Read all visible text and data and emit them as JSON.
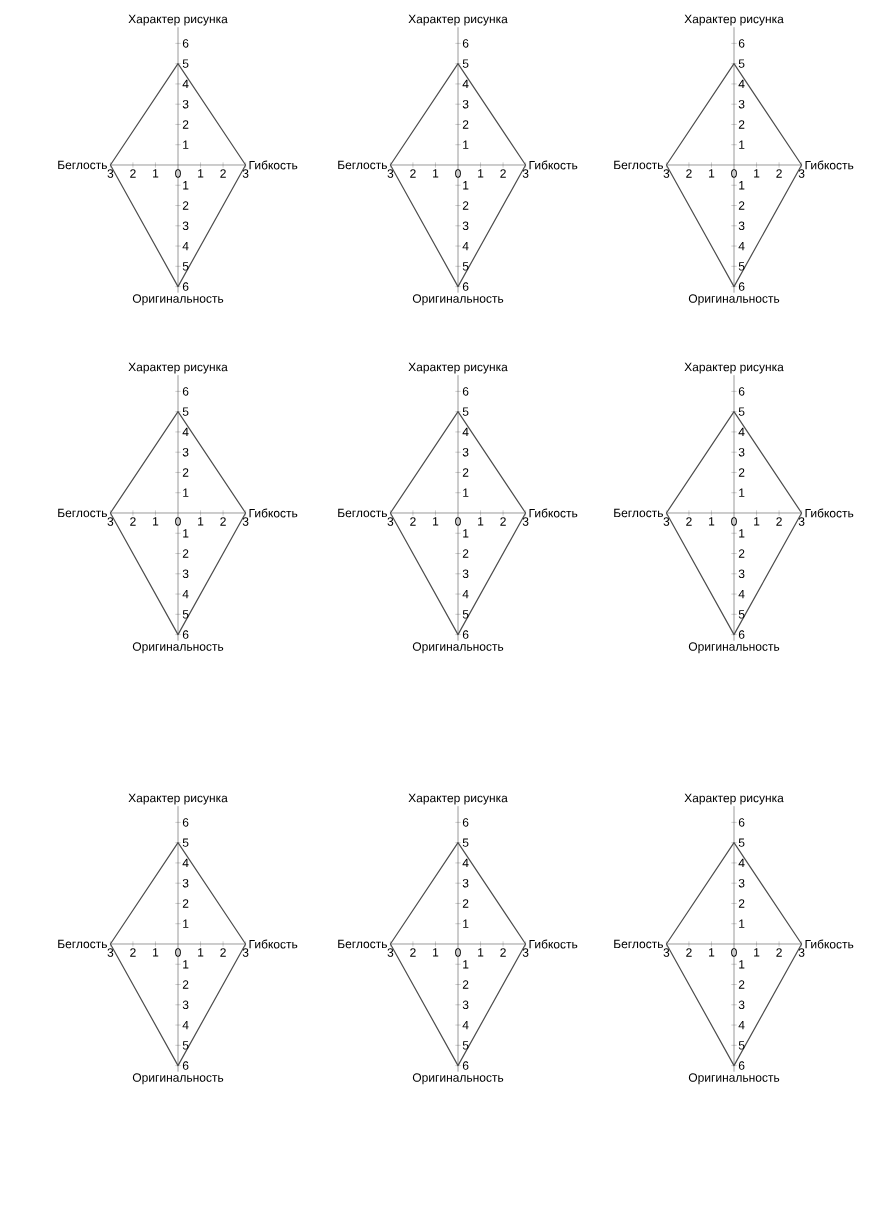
{
  "chart_data": [
    {
      "type": "line",
      "ylabel": "Характер рисунка",
      "xlabel": "Оригинальность",
      "annotations": [
        "Беглость",
        "Гибкость"
      ],
      "series": [
        {
          "color": "#4d4d4d",
          "x": [
            -3,
            0,
            3
          ],
          "values": [
            0,
            5,
            0
          ]
        },
        {
          "color": "#4d4d4d",
          "x": [
            -3,
            0,
            3
          ],
          "values": [
            0,
            -6,
            0
          ]
        }
      ],
      "xlim": [
        -3,
        3
      ],
      "ylim": [
        -6.3,
        6.8
      ],
      "xticks": [
        {
          "value": -3,
          "label": "3"
        },
        {
          "value": -2,
          "label": "2"
        },
        {
          "value": -1,
          "label": "1"
        },
        0,
        1,
        2,
        3
      ],
      "yticks": [
        {
          "value": -6,
          "label": "6"
        },
        {
          "value": -5,
          "label": "5"
        },
        {
          "value": -4,
          "label": "4"
        },
        {
          "value": -3,
          "label": "3"
        },
        {
          "value": -2,
          "label": "2"
        },
        {
          "value": -1,
          "label": "1"
        },
        1,
        2,
        3,
        4,
        5,
        6
      ]
    },
    {
      "type": "line",
      "ylabel": "Характер рисунка",
      "xlabel": "Оригинальность",
      "annotations": [
        "Беглость",
        "Гибкость"
      ],
      "series": [
        {
          "color": "#4d4d4d",
          "x": [
            -3,
            0,
            3
          ],
          "values": [
            0,
            5,
            0
          ]
        },
        {
          "color": "#4d4d4d",
          "x": [
            -3,
            0,
            3
          ],
          "values": [
            0,
            -6,
            0
          ]
        }
      ],
      "xlim": [
        -3,
        3
      ],
      "ylim": [
        -6.3,
        6.8
      ],
      "xticks": [
        {
          "value": -3,
          "label": "3"
        },
        {
          "value": -2,
          "label": "2"
        },
        {
          "value": -1,
          "label": "1"
        },
        0,
        1,
        2,
        3
      ],
      "yticks": [
        {
          "value": -6,
          "label": "6"
        },
        {
          "value": -5,
          "label": "5"
        },
        {
          "value": -4,
          "label": "4"
        },
        {
          "value": -3,
          "label": "3"
        },
        {
          "value": -2,
          "label": "2"
        },
        {
          "value": -1,
          "label": "1"
        },
        1,
        2,
        3,
        4,
        5,
        6
      ]
    },
    {
      "type": "line",
      "ylabel": "Характер рисунка",
      "xlabel": "Оригинальность",
      "annotations": [
        "Беглость",
        "Гибкость"
      ],
      "series": [
        {
          "color": "#4d4d4d",
          "x": [
            -3,
            0,
            3
          ],
          "values": [
            0,
            5,
            0
          ]
        },
        {
          "color": "#4d4d4d",
          "x": [
            -3,
            0,
            3
          ],
          "values": [
            0,
            -6,
            0
          ]
        }
      ],
      "xlim": [
        -3,
        3
      ],
      "ylim": [
        -6.3,
        6.8
      ],
      "xticks": [
        {
          "value": -3,
          "label": "3"
        },
        {
          "value": -2,
          "label": "2"
        },
        {
          "value": -1,
          "label": "1"
        },
        0,
        1,
        2,
        3
      ],
      "yticks": [
        {
          "value": -6,
          "label": "6"
        },
        {
          "value": -5,
          "label": "5"
        },
        {
          "value": -4,
          "label": "4"
        },
        {
          "value": -3,
          "label": "3"
        },
        {
          "value": -2,
          "label": "2"
        },
        {
          "value": -1,
          "label": "1"
        },
        1,
        2,
        3,
        4,
        5,
        6
      ]
    },
    {
      "type": "line",
      "ylabel": "Характер рисунка",
      "xlabel": "Оригинальность",
      "annotations": [
        "Беглость",
        "Гибкость"
      ],
      "series": [
        {
          "color": "#4d4d4d",
          "x": [
            -3,
            0,
            3
          ],
          "values": [
            0,
            5,
            0
          ]
        },
        {
          "color": "#4d4d4d",
          "x": [
            -3,
            0,
            3
          ],
          "values": [
            0,
            -6,
            0
          ]
        }
      ],
      "xlim": [
        -3,
        3
      ],
      "ylim": [
        -6.3,
        6.8
      ],
      "xticks": [
        {
          "value": -3,
          "label": "3"
        },
        {
          "value": -2,
          "label": "2"
        },
        {
          "value": -1,
          "label": "1"
        },
        0,
        1,
        2,
        3
      ],
      "yticks": [
        {
          "value": -6,
          "label": "6"
        },
        {
          "value": -5,
          "label": "5"
        },
        {
          "value": -4,
          "label": "4"
        },
        {
          "value": -3,
          "label": "3"
        },
        {
          "value": -2,
          "label": "2"
        },
        {
          "value": -1,
          "label": "1"
        },
        1,
        2,
        3,
        4,
        5,
        6
      ]
    },
    {
      "type": "line",
      "ylabel": "Характер рисунка",
      "xlabel": "Оригинальность",
      "annotations": [
        "Беглость",
        "Гибкость"
      ],
      "series": [
        {
          "color": "#4d4d4d",
          "x": [
            -3,
            0,
            3
          ],
          "values": [
            0,
            5,
            0
          ]
        },
        {
          "color": "#4d4d4d",
          "x": [
            -3,
            0,
            3
          ],
          "values": [
            0,
            -6,
            0
          ]
        }
      ],
      "xlim": [
        -3,
        3
      ],
      "ylim": [
        -6.3,
        6.8
      ],
      "xticks": [
        {
          "value": -3,
          "label": "3"
        },
        {
          "value": -2,
          "label": "2"
        },
        {
          "value": -1,
          "label": "1"
        },
        0,
        1,
        2,
        3
      ],
      "yticks": [
        {
          "value": -6,
          "label": "6"
        },
        {
          "value": -5,
          "label": "5"
        },
        {
          "value": -4,
          "label": "4"
        },
        {
          "value": -3,
          "label": "3"
        },
        {
          "value": -2,
          "label": "2"
        },
        {
          "value": -1,
          "label": "1"
        },
        1,
        2,
        3,
        4,
        5,
        6
      ]
    },
    {
      "type": "line",
      "ylabel": "Характер рисунка",
      "xlabel": "Оригинальность",
      "annotations": [
        "Беглость",
        "Гибкость"
      ],
      "series": [
        {
          "color": "#4d4d4d",
          "x": [
            -3,
            0,
            3
          ],
          "values": [
            0,
            5,
            0
          ]
        },
        {
          "color": "#4d4d4d",
          "x": [
            -3,
            0,
            3
          ],
          "values": [
            0,
            -6,
            0
          ]
        }
      ],
      "xlim": [
        -3,
        3
      ],
      "ylim": [
        -6.3,
        6.8
      ],
      "xticks": [
        {
          "value": -3,
          "label": "3"
        },
        {
          "value": -2,
          "label": "2"
        },
        {
          "value": -1,
          "label": "1"
        },
        0,
        1,
        2,
        3
      ],
      "yticks": [
        {
          "value": -6,
          "label": "6"
        },
        {
          "value": -5,
          "label": "5"
        },
        {
          "value": -4,
          "label": "4"
        },
        {
          "value": -3,
          "label": "3"
        },
        {
          "value": -2,
          "label": "2"
        },
        {
          "value": -1,
          "label": "1"
        },
        1,
        2,
        3,
        4,
        5,
        6
      ]
    },
    {
      "type": "line",
      "ylabel": "Характер рисунка",
      "xlabel": "Оригинальность",
      "annotations": [
        "Беглость",
        "Гибкость"
      ],
      "series": [
        {
          "color": "#4d4d4d",
          "x": [
            -3,
            0,
            3
          ],
          "values": [
            0,
            5,
            0
          ]
        },
        {
          "color": "#4d4d4d",
          "x": [
            -3,
            0,
            3
          ],
          "values": [
            0,
            -6,
            0
          ]
        }
      ],
      "xlim": [
        -3,
        3
      ],
      "ylim": [
        -6.3,
        6.8
      ],
      "xticks": [
        {
          "value": -3,
          "label": "3"
        },
        {
          "value": -2,
          "label": "2"
        },
        {
          "value": -1,
          "label": "1"
        },
        0,
        1,
        2,
        3
      ],
      "yticks": [
        {
          "value": -6,
          "label": "6"
        },
        {
          "value": -5,
          "label": "5"
        },
        {
          "value": -4,
          "label": "4"
        },
        {
          "value": -3,
          "label": "3"
        },
        {
          "value": -2,
          "label": "2"
        },
        {
          "value": -1,
          "label": "1"
        },
        1,
        2,
        3,
        4,
        5,
        6
      ]
    },
    {
      "type": "line",
      "ylabel": "Характер рисунка",
      "xlabel": "Оригинальность",
      "annotations": [
        "Беглость",
        "Гибкость"
      ],
      "series": [
        {
          "color": "#4d4d4d",
          "x": [
            -3,
            0,
            3
          ],
          "values": [
            0,
            5,
            0
          ]
        },
        {
          "color": "#4d4d4d",
          "x": [
            -3,
            0,
            3
          ],
          "values": [
            0,
            -6,
            0
          ]
        }
      ],
      "xlim": [
        -3,
        3
      ],
      "ylim": [
        -6.3,
        6.8
      ],
      "xticks": [
        {
          "value": -3,
          "label": "3"
        },
        {
          "value": -2,
          "label": "2"
        },
        {
          "value": -1,
          "label": "1"
        },
        0,
        1,
        2,
        3
      ],
      "yticks": [
        {
          "value": -6,
          "label": "6"
        },
        {
          "value": -5,
          "label": "5"
        },
        {
          "value": -4,
          "label": "4"
        },
        {
          "value": -3,
          "label": "3"
        },
        {
          "value": -2,
          "label": "2"
        },
        {
          "value": -1,
          "label": "1"
        },
        1,
        2,
        3,
        4,
        5,
        6
      ]
    },
    {
      "type": "line",
      "ylabel": "Характер рисунка",
      "xlabel": "Оригинальность",
      "annotations": [
        "Беглость",
        "Гибкость"
      ],
      "series": [
        {
          "color": "#4d4d4d",
          "x": [
            -3,
            0,
            3
          ],
          "values": [
            0,
            5,
            0
          ]
        },
        {
          "color": "#4d4d4d",
          "x": [
            -3,
            0,
            3
          ],
          "values": [
            0,
            -6,
            0
          ]
        }
      ],
      "xlim": [
        -3,
        3
      ],
      "ylim": [
        -6.3,
        6.8
      ],
      "xticks": [
        {
          "value": -3,
          "label": "3"
        },
        {
          "value": -2,
          "label": "2"
        },
        {
          "value": -1,
          "label": "1"
        },
        0,
        1,
        2,
        3
      ],
      "yticks": [
        {
          "value": -6,
          "label": "6"
        },
        {
          "value": -5,
          "label": "5"
        },
        {
          "value": -4,
          "label": "4"
        },
        {
          "value": -3,
          "label": "3"
        },
        {
          "value": -2,
          "label": "2"
        },
        {
          "value": -1,
          "label": "1"
        },
        1,
        2,
        3,
        4,
        5,
        6
      ]
    }
  ]
}
